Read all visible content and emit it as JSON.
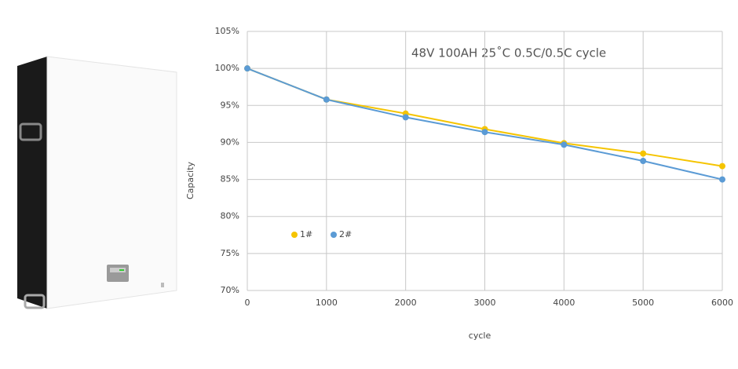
{
  "chart_data": {
    "type": "line",
    "title": "48V 100AH 25˚C 0.5C/0.5C cycle",
    "x_label": "cycle",
    "y_label": "Capacity",
    "x": [
      0,
      1000,
      2000,
      3000,
      4000,
      5000,
      6000
    ],
    "series": [
      {
        "name": "1#",
        "color": "#f5c400",
        "values": [
          100,
          95.8,
          93.9,
          91.8,
          89.9,
          88.5,
          86.8
        ]
      },
      {
        "name": "2#",
        "color": "#5b9bd5",
        "values": [
          100,
          95.8,
          93.4,
          91.4,
          89.7,
          87.5,
          85.0
        ]
      }
    ],
    "xlim": [
      0,
      6000
    ],
    "xticks": [
      0,
      1000,
      2000,
      3000,
      4000,
      5000,
      6000
    ],
    "ylim": [
      70,
      105
    ],
    "yticks": [
      {
        "value": 70,
        "label": "70%"
      },
      {
        "value": 75,
        "label": "75%"
      },
      {
        "value": 80,
        "label": "80%"
      },
      {
        "value": 85,
        "label": "85%"
      },
      {
        "value": 90,
        "label": "90%"
      },
      {
        "value": 95,
        "label": "95%"
      },
      {
        "value": 100,
        "label": "100%"
      },
      {
        "value": 105,
        "label": "105%"
      }
    ],
    "grid": true
  }
}
